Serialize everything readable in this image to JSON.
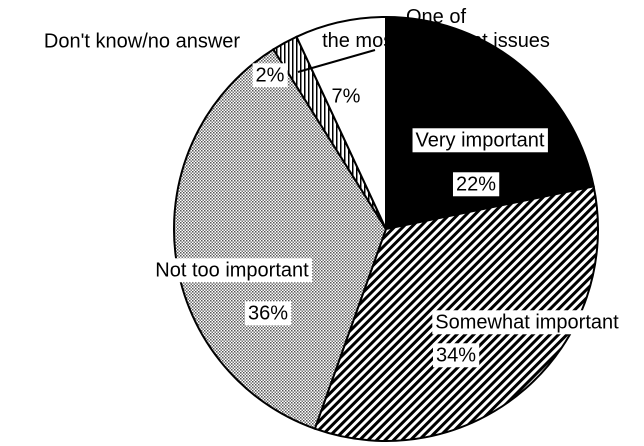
{
  "chart_data": {
    "type": "pie",
    "categories": [
      "Very important",
      "Somewhat important",
      "Not too important",
      "Don't know/no answer",
      "One of the most important issues"
    ],
    "values": [
      22,
      34,
      36,
      2,
      7
    ],
    "value_labels": [
      "22%",
      "34%",
      "36%",
      "2%",
      "7%"
    ]
  }
}
